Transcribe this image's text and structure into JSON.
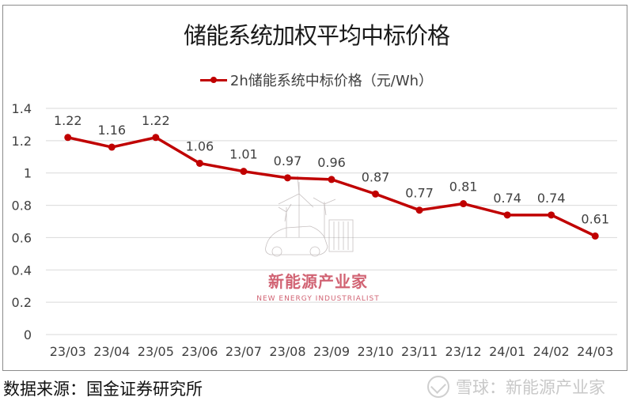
{
  "chart": {
    "title": "储能系统加权平均中标价格",
    "legend_label": "2h储能系统中标价格（元/Wh）",
    "series_color": "#c00000"
  },
  "chart_data": {
    "type": "line",
    "title": "储能系统加权平均中标价格",
    "xlabel": "",
    "ylabel": "",
    "categories": [
      "23/03",
      "23/04",
      "23/05",
      "23/06",
      "23/07",
      "23/08",
      "23/09",
      "23/10",
      "23/11",
      "23/12",
      "24/01",
      "24/02",
      "24/03"
    ],
    "series": [
      {
        "name": "2h储能系统中标价格（元/Wh）",
        "values": [
          1.22,
          1.16,
          1.22,
          1.06,
          1.01,
          0.97,
          0.96,
          0.87,
          0.77,
          0.81,
          0.74,
          0.74,
          0.61
        ],
        "color": "#c00000"
      }
    ],
    "data_labels": [
      "1.22",
      "1.16",
      "1.22",
      "1.06",
      "1.01",
      "0.97",
      "0.96",
      "0.87",
      "0.77",
      "0.81",
      "0.74",
      "0.74",
      "0.61"
    ],
    "yticks": [
      "0",
      "0.2",
      "0.4",
      "0.6",
      "0.8",
      "1",
      "1.2",
      "1.4"
    ],
    "ylim": [
      0,
      1.4
    ],
    "grid": true,
    "legend_position": "top"
  },
  "watermark": {
    "brand_cn": "新能源产业家",
    "brand_en": "NEW ENERGY INDUSTRIALIST"
  },
  "footer": {
    "source": "数据来源：国金证券研究所",
    "platform_watermark": "雪球：新能源产业家"
  }
}
